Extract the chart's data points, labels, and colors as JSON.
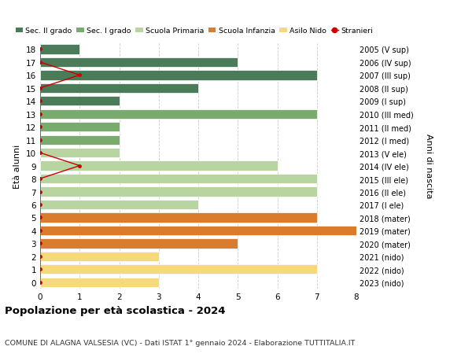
{
  "ages": [
    18,
    17,
    16,
    15,
    14,
    13,
    12,
    11,
    10,
    9,
    8,
    7,
    6,
    5,
    4,
    3,
    2,
    1,
    0
  ],
  "right_labels": [
    "2005 (V sup)",
    "2006 (IV sup)",
    "2007 (III sup)",
    "2008 (II sup)",
    "2009 (I sup)",
    "2010 (III med)",
    "2011 (II med)",
    "2012 (I med)",
    "2013 (V ele)",
    "2014 (IV ele)",
    "2015 (III ele)",
    "2016 (II ele)",
    "2017 (I ele)",
    "2018 (mater)",
    "2019 (mater)",
    "2020 (mater)",
    "2021 (nido)",
    "2022 (nido)",
    "2023 (nido)"
  ],
  "bar_values": [
    1,
    5,
    7,
    4,
    2,
    7,
    2,
    2,
    2,
    6,
    7,
    7,
    4,
    7,
    8,
    5,
    3,
    7,
    3
  ],
  "bar_colors": [
    "#4a7c59",
    "#4a7c59",
    "#4a7c59",
    "#4a7c59",
    "#4a7c59",
    "#7aab6e",
    "#7aab6e",
    "#7aab6e",
    "#b8d4a0",
    "#b8d4a0",
    "#b8d4a0",
    "#b8d4a0",
    "#b8d4a0",
    "#d97c2e",
    "#d97c2e",
    "#d97c2e",
    "#f5d97a",
    "#f5d97a",
    "#f5d97a"
  ],
  "stranieri_values": [
    0,
    0,
    1,
    0,
    0,
    0,
    0,
    0,
    0,
    1,
    0,
    0,
    0,
    0,
    0,
    0,
    0,
    0,
    0
  ],
  "stranieri_color": "#cc0000",
  "legend_labels": [
    "Sec. II grado",
    "Sec. I grado",
    "Scuola Primaria",
    "Scuola Infanzia",
    "Asilo Nido",
    "Stranieri"
  ],
  "legend_colors": [
    "#4a7c59",
    "#7aab6e",
    "#b8d4a0",
    "#d97c2e",
    "#f5d97a",
    "#cc0000"
  ],
  "ylabel_left": "Età alunni",
  "ylabel_right": "Anni di nascita",
  "title": "Popolazione per età scolastica - 2024",
  "subtitle": "COMUNE DI ALAGNA VALSESIA (VC) - Dati ISTAT 1° gennaio 2024 - Elaborazione TUTTITALIA.IT",
  "xlim": [
    0,
    8
  ],
  "xticks": [
    0,
    1,
    2,
    3,
    4,
    5,
    6,
    7,
    8
  ],
  "bg_color": "#ffffff",
  "grid_color": "#cccccc",
  "bar_height": 0.75
}
